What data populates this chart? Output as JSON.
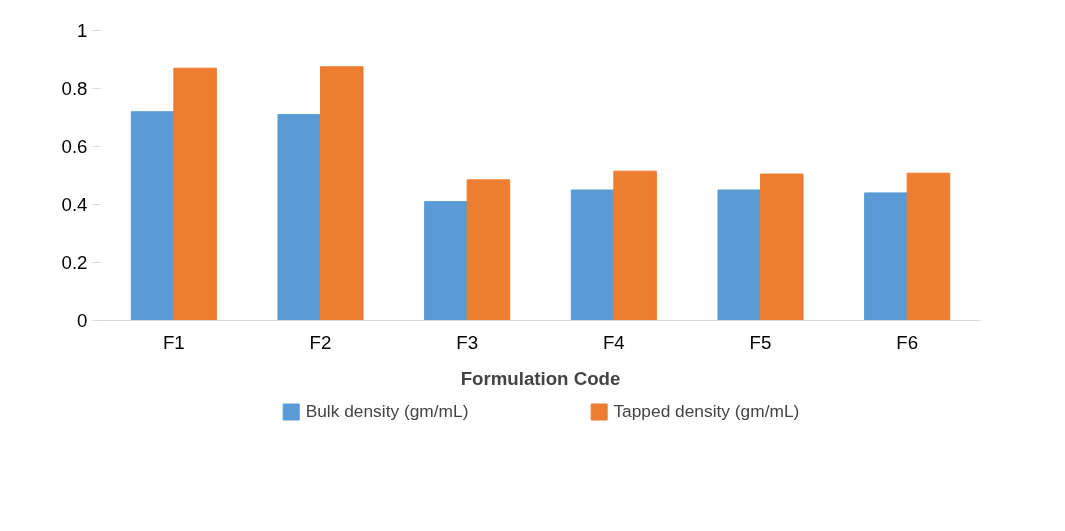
{
  "chart_data": {
    "type": "bar",
    "xlabel": "Formulation Code",
    "categories": [
      "F1",
      "F2",
      "F3",
      "F4",
      "F5",
      "F6"
    ],
    "series": [
      {
        "name": "Bulk density (gm/mL)",
        "color": "#5b9bd5",
        "values": [
          0.72,
          0.71,
          0.41,
          0.45,
          0.45,
          0.44
        ]
      },
      {
        "name": "Tapped density (gm/mL)",
        "color": "#ed7d31",
        "values": [
          0.87,
          0.875,
          0.485,
          0.515,
          0.505,
          0.508
        ]
      }
    ],
    "ylim": [
      0,
      1
    ],
    "yticks": [
      0,
      0.2,
      0.4,
      0.6,
      0.8,
      1
    ],
    "grid": false,
    "legend": "bottom"
  }
}
